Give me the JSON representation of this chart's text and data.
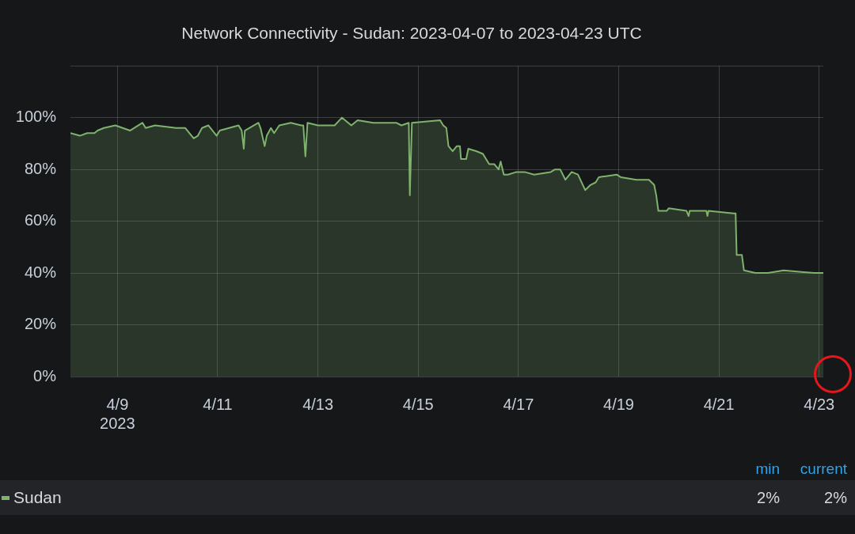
{
  "chart_data": {
    "type": "area",
    "title": "Network Connectivity - Sudan: 2023-04-07 to 2023-04-23 UTC",
    "series": [
      {
        "name": "Sudan",
        "color": "#7eb26d",
        "x": [
          "2023-04-08T01:30",
          "2023-04-08T06:00",
          "2023-04-08T09:30",
          "2023-04-08T13:00",
          "2023-04-08T14:30",
          "2023-04-08T17:30",
          "2023-04-08T23:00",
          "2023-04-09T06:00",
          "2023-04-09T12:00",
          "2023-04-09T13:30",
          "2023-04-09T18:00",
          "2023-04-10T04:00",
          "2023-04-10T08:30",
          "2023-04-10T12:30",
          "2023-04-10T14:30",
          "2023-04-10T16:30",
          "2023-04-10T19:30",
          "2023-04-10T23:30",
          "2023-04-11T01:00",
          "2023-04-11T05:30",
          "2023-04-11T10:00",
          "2023-04-11T11:30",
          "2023-04-11T12:30",
          "2023-04-11T13:00",
          "2023-04-11T19:30",
          "2023-04-11T20:30",
          "2023-04-11T22:30",
          "2023-04-11T23:30",
          "2023-04-12T01:30",
          "2023-04-12T03:00",
          "2023-04-12T05:30",
          "2023-04-12T11:00",
          "2023-04-12T16:00",
          "2023-04-12T17:00",
          "2023-04-12T18:00",
          "2023-04-12T19:00",
          "2023-04-13T00:00",
          "2023-04-13T08:00",
          "2023-04-13T11:30",
          "2023-04-13T16:00",
          "2023-04-13T19:00",
          "2023-04-14T02:30",
          "2023-04-14T13:30",
          "2023-04-14T16:00",
          "2023-04-14T19:30",
          "2023-04-14T20:00",
          "2023-04-14T21:00",
          "2023-04-15T10:30",
          "2023-04-15T12:00",
          "2023-04-15T13:30",
          "2023-04-15T14:30",
          "2023-04-15T16:30",
          "2023-04-15T18:30",
          "2023-04-15T20:00",
          "2023-04-15T20:30",
          "2023-04-15T23:00",
          "2023-04-16T00:00",
          "2023-04-16T04:00",
          "2023-04-16T07:00",
          "2023-04-16T10:00",
          "2023-04-16T12:30",
          "2023-04-16T14:30",
          "2023-04-16T15:30",
          "2023-04-16T17:00",
          "2023-04-16T19:00",
          "2023-04-16T23:00",
          "2023-04-17T03:00",
          "2023-04-17T07:30",
          "2023-04-17T15:30",
          "2023-04-17T17:30",
          "2023-04-17T20:00",
          "2023-04-17T22:30",
          "2023-04-18T01:30",
          "2023-04-18T04:30",
          "2023-04-18T08:00",
          "2023-04-18T10:30",
          "2023-04-18T13:00",
          "2023-04-18T14:30",
          "2023-04-18T23:00",
          "2023-04-19T01:00",
          "2023-04-19T08:30",
          "2023-04-19T14:30",
          "2023-04-19T17:00",
          "2023-04-19T18:00",
          "2023-04-19T19:00",
          "2023-04-19T23:00",
          "2023-04-20T00:00",
          "2023-04-20T08:30",
          "2023-04-20T09:30",
          "2023-04-20T10:00",
          "2023-04-20T15:00",
          "2023-04-20T18:00",
          "2023-04-20T18:30",
          "2023-04-20T19:00",
          "2023-04-21T07:00",
          "2023-04-21T08:00",
          "2023-04-21T08:30",
          "2023-04-21T11:00",
          "2023-04-21T12:00",
          "2023-04-21T17:30",
          "2023-04-21T23:30",
          "2023-04-22T07:00",
          "2023-04-22T21:30",
          "2023-04-23T02:00"
        ],
        "values": [
          94,
          93,
          94,
          94,
          95,
          96,
          97,
          95,
          98,
          96,
          97,
          96,
          96,
          92,
          93,
          96,
          97,
          93,
          95,
          96,
          97,
          95,
          88,
          95,
          98,
          96,
          89,
          93,
          96,
          94,
          97,
          98,
          97,
          97,
          85,
          98,
          97,
          97,
          100,
          97,
          99,
          98,
          98,
          97,
          98,
          70,
          98,
          99,
          97,
          96,
          89,
          87,
          89,
          89,
          84,
          84,
          88,
          87,
          86,
          82,
          82,
          80,
          83,
          78,
          78,
          79,
          79,
          78,
          79,
          80,
          80,
          76,
          79,
          78,
          72,
          74,
          75,
          77,
          78,
          77,
          76,
          76,
          74,
          70,
          64,
          64,
          65,
          64,
          62,
          64,
          64,
          64,
          62,
          64,
          63,
          63,
          47,
          47,
          41,
          40,
          40,
          41,
          40,
          40
        ]
      }
    ],
    "xlim": [
      "2023-04-08T01:30",
      "2023-04-23T02:00"
    ],
    "xticks": [
      {
        "value": "2023-04-09",
        "label": "4/9\n2023"
      },
      {
        "value": "2023-04-11",
        "label": "4/11"
      },
      {
        "value": "2023-04-13",
        "label": "4/13"
      },
      {
        "value": "2023-04-15",
        "label": "4/15"
      },
      {
        "value": "2023-04-17",
        "label": "4/17"
      },
      {
        "value": "2023-04-19",
        "label": "4/19"
      },
      {
        "value": "2023-04-21",
        "label": "4/21"
      },
      {
        "value": "2023-04-23",
        "label": "4/23"
      }
    ],
    "ylim": [
      0,
      120
    ],
    "yticks": [
      {
        "value": 0,
        "label": "0%"
      },
      {
        "value": 20,
        "label": "20%"
      },
      {
        "value": 40,
        "label": "40%"
      },
      {
        "value": 60,
        "label": "60%"
      },
      {
        "value": 80,
        "label": "80%"
      },
      {
        "value": 100,
        "label": "100%"
      },
      {
        "value": 120,
        "label": null
      }
    ],
    "grid": true,
    "legend": "bottom",
    "annotations": [
      "min",
      "current",
      "2%",
      "2%"
    ]
  }
}
